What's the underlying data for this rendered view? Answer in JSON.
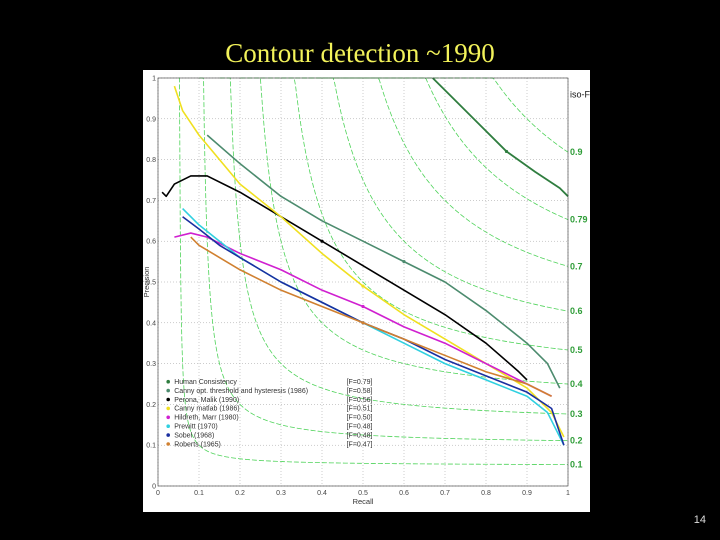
{
  "slide": {
    "title": "Contour detection ~1990",
    "page_number": "14"
  },
  "chart_data": {
    "type": "line",
    "title": "",
    "xlabel": "Recall",
    "ylabel": "Precision",
    "xlim": [
      0,
      1
    ],
    "ylim": [
      0,
      1
    ],
    "x_ticks": [
      "0",
      "0.1",
      "0.2",
      "0.3",
      "0.4",
      "0.5",
      "0.6",
      "0.7",
      "0.8",
      "0.9",
      "1"
    ],
    "y_ticks": [
      "0",
      "0.1",
      "0.2",
      "0.3",
      "0.4",
      "0.5",
      "0.6",
      "0.7",
      "0.8",
      "0.9",
      "1"
    ],
    "grid": true,
    "legend_position": "bottom-left",
    "iso_title": "iso-F",
    "iso_f": [
      {
        "value": 0.9,
        "label": "0.9"
      },
      {
        "value": 0.79,
        "label": "0.79"
      },
      {
        "value": 0.7,
        "label": "0.7"
      },
      {
        "value": 0.6,
        "label": "0.6"
      },
      {
        "value": 0.5,
        "label": "0.5"
      },
      {
        "value": 0.4,
        "label": "0.4"
      },
      {
        "value": 0.3,
        "label": "0.3"
      },
      {
        "value": 0.2,
        "label": "0.2"
      },
      {
        "value": 0.1,
        "label": "0.1"
      }
    ],
    "series": [
      {
        "name": "Human Consistency",
        "fscore": "[F=0.79]",
        "color": "#2f7d3f",
        "points": [
          [
            0.67,
            1.0
          ],
          [
            0.72,
            0.95
          ],
          [
            0.78,
            0.89
          ],
          [
            0.85,
            0.82
          ],
          [
            0.92,
            0.77
          ],
          [
            0.98,
            0.73
          ],
          [
            1.0,
            0.71
          ]
        ]
      },
      {
        "name": "Canny opt. threshold and hysteresis (1986)",
        "fscore": "[F=0.58]",
        "color": "#4c8b6e",
        "points": [
          [
            0.12,
            0.86
          ],
          [
            0.2,
            0.79
          ],
          [
            0.3,
            0.71
          ],
          [
            0.4,
            0.65
          ],
          [
            0.5,
            0.6
          ],
          [
            0.6,
            0.55
          ],
          [
            0.7,
            0.5
          ],
          [
            0.8,
            0.43
          ],
          [
            0.9,
            0.35
          ],
          [
            0.95,
            0.3
          ],
          [
            0.98,
            0.24
          ]
        ]
      },
      {
        "name": "Perona, Malik (1990)",
        "fscore": "[F=0.56]",
        "color": "#000000",
        "points": [
          [
            0.01,
            0.72
          ],
          [
            0.02,
            0.71
          ],
          [
            0.04,
            0.74
          ],
          [
            0.08,
            0.76
          ],
          [
            0.12,
            0.76
          ],
          [
            0.2,
            0.72
          ],
          [
            0.3,
            0.66
          ],
          [
            0.4,
            0.6
          ],
          [
            0.5,
            0.54
          ],
          [
            0.6,
            0.48
          ],
          [
            0.7,
            0.42
          ],
          [
            0.8,
            0.35
          ],
          [
            0.88,
            0.28
          ],
          [
            0.9,
            0.26
          ]
        ]
      },
      {
        "name": "Canny matlab (1986)",
        "fscore": "[F=0.51]",
        "color": "#f0e020",
        "points": [
          [
            0.04,
            0.98
          ],
          [
            0.06,
            0.92
          ],
          [
            0.1,
            0.86
          ],
          [
            0.15,
            0.8
          ],
          [
            0.2,
            0.74
          ],
          [
            0.3,
            0.66
          ],
          [
            0.4,
            0.57
          ],
          [
            0.5,
            0.49
          ],
          [
            0.6,
            0.42
          ],
          [
            0.7,
            0.36
          ],
          [
            0.8,
            0.3
          ],
          [
            0.9,
            0.24
          ],
          [
            0.96,
            0.18
          ],
          [
            0.99,
            0.12
          ]
        ]
      },
      {
        "name": "Hildreth, Marr (1980)",
        "fscore": "[F=0.50]",
        "color": "#d020d0",
        "points": [
          [
            0.04,
            0.61
          ],
          [
            0.08,
            0.62
          ],
          [
            0.12,
            0.61
          ],
          [
            0.2,
            0.57
          ],
          [
            0.3,
            0.53
          ],
          [
            0.4,
            0.48
          ],
          [
            0.5,
            0.44
          ],
          [
            0.6,
            0.39
          ],
          [
            0.7,
            0.35
          ],
          [
            0.8,
            0.3
          ],
          [
            0.9,
            0.25
          ],
          [
            0.96,
            0.22
          ]
        ]
      },
      {
        "name": "Prewitt (1970)",
        "fscore": "[F=0.48]",
        "color": "#30d0e0",
        "points": [
          [
            0.06,
            0.68
          ],
          [
            0.1,
            0.64
          ],
          [
            0.15,
            0.6
          ],
          [
            0.2,
            0.56
          ],
          [
            0.3,
            0.5
          ],
          [
            0.4,
            0.45
          ],
          [
            0.5,
            0.4
          ],
          [
            0.6,
            0.35
          ],
          [
            0.7,
            0.3
          ],
          [
            0.8,
            0.26
          ],
          [
            0.9,
            0.22
          ],
          [
            0.95,
            0.18
          ],
          [
            0.99,
            0.1
          ]
        ]
      },
      {
        "name": "Sobel (1968)",
        "fscore": "[F=0.48]",
        "color": "#1a2fa0",
        "points": [
          [
            0.06,
            0.66
          ],
          [
            0.1,
            0.63
          ],
          [
            0.15,
            0.59
          ],
          [
            0.2,
            0.56
          ],
          [
            0.3,
            0.5
          ],
          [
            0.4,
            0.45
          ],
          [
            0.5,
            0.4
          ],
          [
            0.6,
            0.36
          ],
          [
            0.7,
            0.31
          ],
          [
            0.8,
            0.27
          ],
          [
            0.9,
            0.23
          ],
          [
            0.96,
            0.19
          ],
          [
            0.99,
            0.1
          ]
        ]
      },
      {
        "name": "Roberts (1965)",
        "fscore": "[F=0.47]",
        "color": "#d08030",
        "points": [
          [
            0.08,
            0.61
          ],
          [
            0.1,
            0.59
          ],
          [
            0.15,
            0.56
          ],
          [
            0.2,
            0.53
          ],
          [
            0.3,
            0.48
          ],
          [
            0.4,
            0.44
          ],
          [
            0.5,
            0.4
          ],
          [
            0.6,
            0.36
          ],
          [
            0.7,
            0.32
          ],
          [
            0.8,
            0.28
          ],
          [
            0.9,
            0.25
          ],
          [
            0.96,
            0.22
          ]
        ]
      }
    ]
  }
}
